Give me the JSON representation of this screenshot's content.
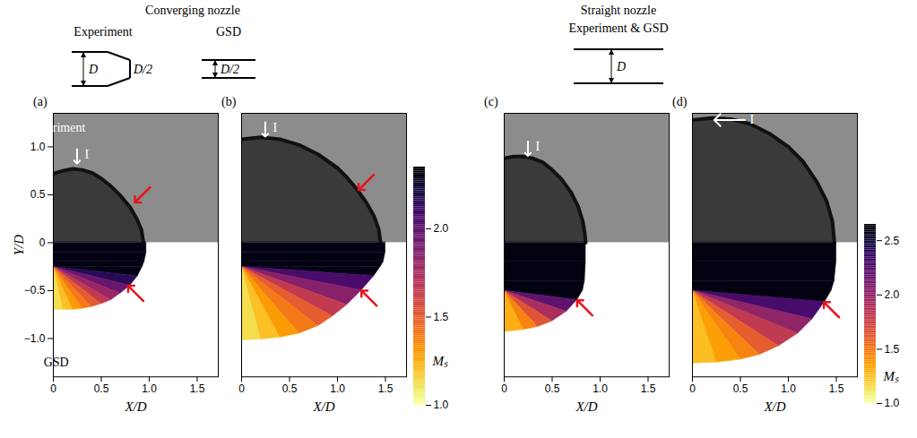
{
  "header": {
    "groups": [
      {
        "title": "Converging nozzle",
        "sketches": [
          {
            "label": "Experiment",
            "dims": [
              "D",
              "D/2"
            ]
          },
          {
            "label": "GSD",
            "dims": [
              "D/2"
            ]
          }
        ]
      },
      {
        "title": "Straight nozzle",
        "sketches": [
          {
            "label": "Experiment & GSD",
            "dims": [
              "D"
            ]
          }
        ]
      }
    ]
  },
  "chart_data": [
    {
      "type": "area",
      "panel": "(a)",
      "xlabel": "X/D",
      "ylabel": "Y/D",
      "xlim": [
        0,
        1.72
      ],
      "ylim": [
        -1.4,
        1.35
      ],
      "xticks": [
        0,
        0.5,
        {
          "value": 1,
          "label": "1.0"
        },
        1.5
      ],
      "yticks": [
        {
          "value": -1,
          "label": "−1.0"
        },
        {
          "value": -0.5,
          "label": "−0.5"
        },
        0,
        0.5,
        {
          "value": 1,
          "label": "1.0"
        }
      ],
      "experiment": {
        "x": [
          0,
          0.1,
          0.2,
          0.3,
          0.4,
          0.5,
          0.6,
          0.7,
          0.8,
          0.87,
          0.92,
          0.94
        ],
        "y": [
          0.72,
          0.75,
          0.77,
          0.76,
          0.73,
          0.67,
          0.59,
          0.49,
          0.37,
          0.25,
          0.13,
          0
        ]
      },
      "gsd": {
        "x": [
          0.97,
          0.97,
          0.95,
          0.93,
          0.88,
          0.8,
          0.7,
          0.6,
          0.5,
          0.4,
          0.3,
          0.2,
          0.1,
          0
        ],
        "y": [
          0,
          -0.1,
          -0.2,
          -0.25,
          -0.35,
          -0.45,
          -0.53,
          -0.6,
          -0.64,
          -0.67,
          -0.69,
          -0.7,
          -0.7,
          -0.7
        ],
        "Ms": [
          2.3,
          2.3,
          2.3,
          2.3,
          2.15,
          1.95,
          1.8,
          1.65,
          1.5,
          1.4,
          1.3,
          1.2,
          1.12,
          1.05
        ]
      },
      "red_arrows": [
        {
          "x": 0.85,
          "y": 0.42
        },
        {
          "x": 0.78,
          "y": -0.45
        }
      ],
      "annotations": [
        {
          "text": "I",
          "x": 0.35,
          "y": 0.92,
          "color": "#ffffff",
          "marker": "bent"
        },
        {
          "text": "Experiment",
          "x": 0.03,
          "y": 1.2,
          "color": "#ffffff"
        },
        {
          "text": "GSD",
          "x": 0.03,
          "y": -1.25,
          "color": "#000000"
        }
      ]
    },
    {
      "type": "area",
      "panel": "(b)",
      "xlabel": "X/D",
      "tick_labels": "x",
      "xlim": [
        0,
        1.72
      ],
      "ylim": [
        -1.4,
        1.35
      ],
      "xticks": [
        0,
        0.5,
        {
          "value": 1,
          "label": "1.0"
        },
        1.5
      ],
      "experiment": {
        "x": [
          0,
          0.2,
          0.4,
          0.6,
          0.8,
          1.0,
          1.1,
          1.2,
          1.3,
          1.38,
          1.43,
          1.45
        ],
        "y": [
          1.08,
          1.1,
          1.08,
          1.02,
          0.92,
          0.78,
          0.68,
          0.56,
          0.42,
          0.28,
          0.14,
          0
        ]
      },
      "gsd": {
        "x": [
          1.5,
          1.5,
          1.48,
          1.45,
          1.38,
          1.25,
          1.1,
          0.95,
          0.8,
          0.6,
          0.4,
          0.2,
          0
        ],
        "y": [
          0,
          -0.1,
          -0.2,
          -0.25,
          -0.35,
          -0.5,
          -0.65,
          -0.77,
          -0.87,
          -0.95,
          -0.99,
          -1.01,
          -1.02
        ],
        "Ms": [
          2.3,
          2.3,
          2.3,
          2.3,
          2.05,
          1.85,
          1.65,
          1.5,
          1.4,
          1.3,
          1.2,
          1.12,
          1.08
        ]
      },
      "red_arrows": [
        {
          "x": 1.22,
          "y": 0.55
        },
        {
          "x": 1.25,
          "y": -0.5
        }
      ],
      "annotations": [
        {
          "text": "I",
          "x": 0.35,
          "y": 1.2,
          "color": "#ffffff",
          "marker": "bent"
        }
      ],
      "colorbar": {
        "label": "Mₛ",
        "lim": [
          1,
          2.35
        ],
        "ticks": [
          {
            "value": 1,
            "label": "1.0"
          },
          1.5,
          {
            "value": 2,
            "label": "2.0"
          }
        ]
      }
    },
    {
      "type": "area",
      "panel": "(c)",
      "xlabel": "X/D",
      "tick_labels": "x",
      "xlim": [
        0,
        1.72
      ],
      "ylim": [
        -1.4,
        1.35
      ],
      "xticks": [
        0,
        0.5,
        {
          "value": 1,
          "label": "1.0"
        },
        1.5
      ],
      "experiment": {
        "x": [
          0,
          0.1,
          0.2,
          0.3,
          0.4,
          0.5,
          0.6,
          0.7,
          0.77,
          0.82,
          0.84,
          0.85
        ],
        "y": [
          0.88,
          0.9,
          0.9,
          0.88,
          0.84,
          0.76,
          0.66,
          0.52,
          0.38,
          0.22,
          0.1,
          0
        ]
      },
      "gsd": {
        "x": [
          0.85,
          0.85,
          0.84,
          0.82,
          0.76,
          0.65,
          0.5,
          0.35,
          0.2,
          0
        ],
        "y": [
          0,
          -0.2,
          -0.4,
          -0.5,
          -0.6,
          -0.72,
          -0.82,
          -0.88,
          -0.91,
          -0.93
        ],
        "Ms": [
          2.6,
          2.6,
          2.6,
          2.6,
          2.2,
          1.9,
          1.65,
          1.45,
          1.3,
          1.15
        ]
      },
      "red_arrows": [
        {
          "x": 0.76,
          "y": -0.6
        }
      ],
      "annotations": [
        {
          "text": "I",
          "x": 0.35,
          "y": 1.0,
          "color": "#ffffff",
          "marker": "bent"
        }
      ]
    },
    {
      "type": "area",
      "panel": "(d)",
      "xlabel": "X/D",
      "tick_labels": "x",
      "xlim": [
        0,
        1.72
      ],
      "ylim": [
        -1.4,
        1.35
      ],
      "xticks": [
        0,
        0.5,
        {
          "value": 1,
          "label": "1.0"
        },
        1.5
      ],
      "experiment": {
        "x": [
          0,
          0.2,
          0.4,
          0.6,
          0.8,
          1.0,
          1.15,
          1.3,
          1.4,
          1.46,
          1.48
        ],
        "y": [
          1.28,
          1.3,
          1.29,
          1.24,
          1.14,
          1.0,
          0.85,
          0.63,
          0.43,
          0.22,
          0
        ]
      },
      "gsd": {
        "x": [
          1.5,
          1.5,
          1.48,
          1.45,
          1.38,
          1.25,
          1.1,
          0.9,
          0.7,
          0.5,
          0.25,
          0
        ],
        "y": [
          0,
          -0.2,
          -0.4,
          -0.5,
          -0.62,
          -0.8,
          -0.95,
          -1.08,
          -1.17,
          -1.22,
          -1.25,
          -1.26
        ],
        "Ms": [
          2.6,
          2.6,
          2.6,
          2.6,
          2.3,
          2.0,
          1.8,
          1.6,
          1.45,
          1.35,
          1.25,
          1.15
        ]
      },
      "red_arrows": [
        {
          "x": 1.37,
          "y": -0.62
        }
      ],
      "annotations": [
        {
          "text": "I",
          "x": 0.62,
          "y": 1.28,
          "color": "#ffffff",
          "marker": "left"
        }
      ],
      "colorbar": {
        "label": "Mₛ",
        "lim": [
          1,
          2.65
        ],
        "ticks": [
          {
            "value": 1,
            "label": "1.0"
          },
          1.5,
          {
            "value": 2,
            "label": "2.0"
          },
          2.5
        ]
      }
    }
  ]
}
